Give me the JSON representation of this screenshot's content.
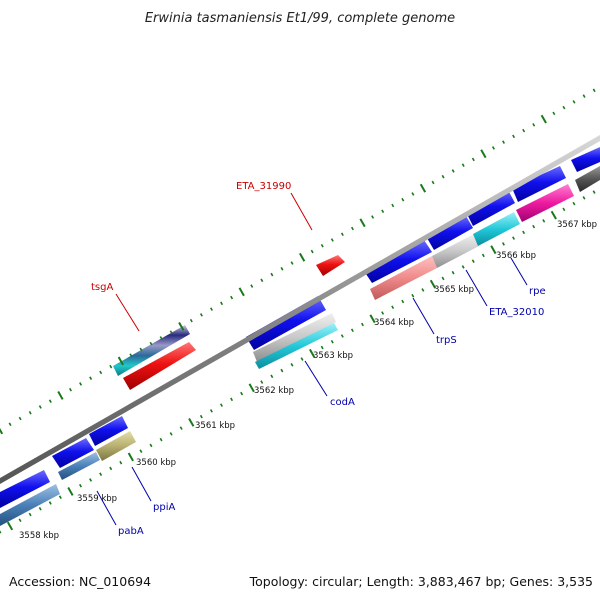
{
  "title": "Erwinia tasmaniensis Et1/99, complete genome",
  "footer": {
    "accession": "Accession: NC_010694",
    "summary": "Topology: circular; Length: 3,883,467 bp; Genes: 3,535"
  },
  "ticks": [
    {
      "label": "3558 kbp"
    },
    {
      "label": "3559 kbp"
    },
    {
      "label": "3560 kbp"
    },
    {
      "label": "3561 kbp"
    },
    {
      "label": "3562 kbp"
    },
    {
      "label": "3563 kbp"
    },
    {
      "label": "3564 kbp"
    },
    {
      "label": "3565 kbp"
    },
    {
      "label": "3566 kbp"
    },
    {
      "label": "3567 kbp"
    }
  ],
  "gene_labels": [
    {
      "name": "ETA_31990",
      "color": "#cc0000"
    },
    {
      "name": "tsgA",
      "color": "#cc0000"
    },
    {
      "name": "codA",
      "color": "#0000aa"
    },
    {
      "name": "trpS",
      "color": "#0000aa"
    },
    {
      "name": "ETA_32010",
      "color": "#0000aa"
    },
    {
      "name": "rpe",
      "color": "#0000aa"
    },
    {
      "name": "ppiA",
      "color": "#0000aa"
    },
    {
      "name": "pabA",
      "color": "#0000aa"
    }
  ],
  "colors": {
    "backbone": "#8a8a8a",
    "tick": "#1a7a1a",
    "cds": "#1010ee",
    "red_gene": "#ee1111",
    "pink_gene": "#f08a8a",
    "magenta_gene": "#ee1aa0",
    "cyan_gene": "#22c8d8",
    "olive_gene": "#b8b070",
    "steel_gene": "#4a80b8",
    "gray_gene": "#c8c8c8",
    "dark_gene": "#555555"
  }
}
